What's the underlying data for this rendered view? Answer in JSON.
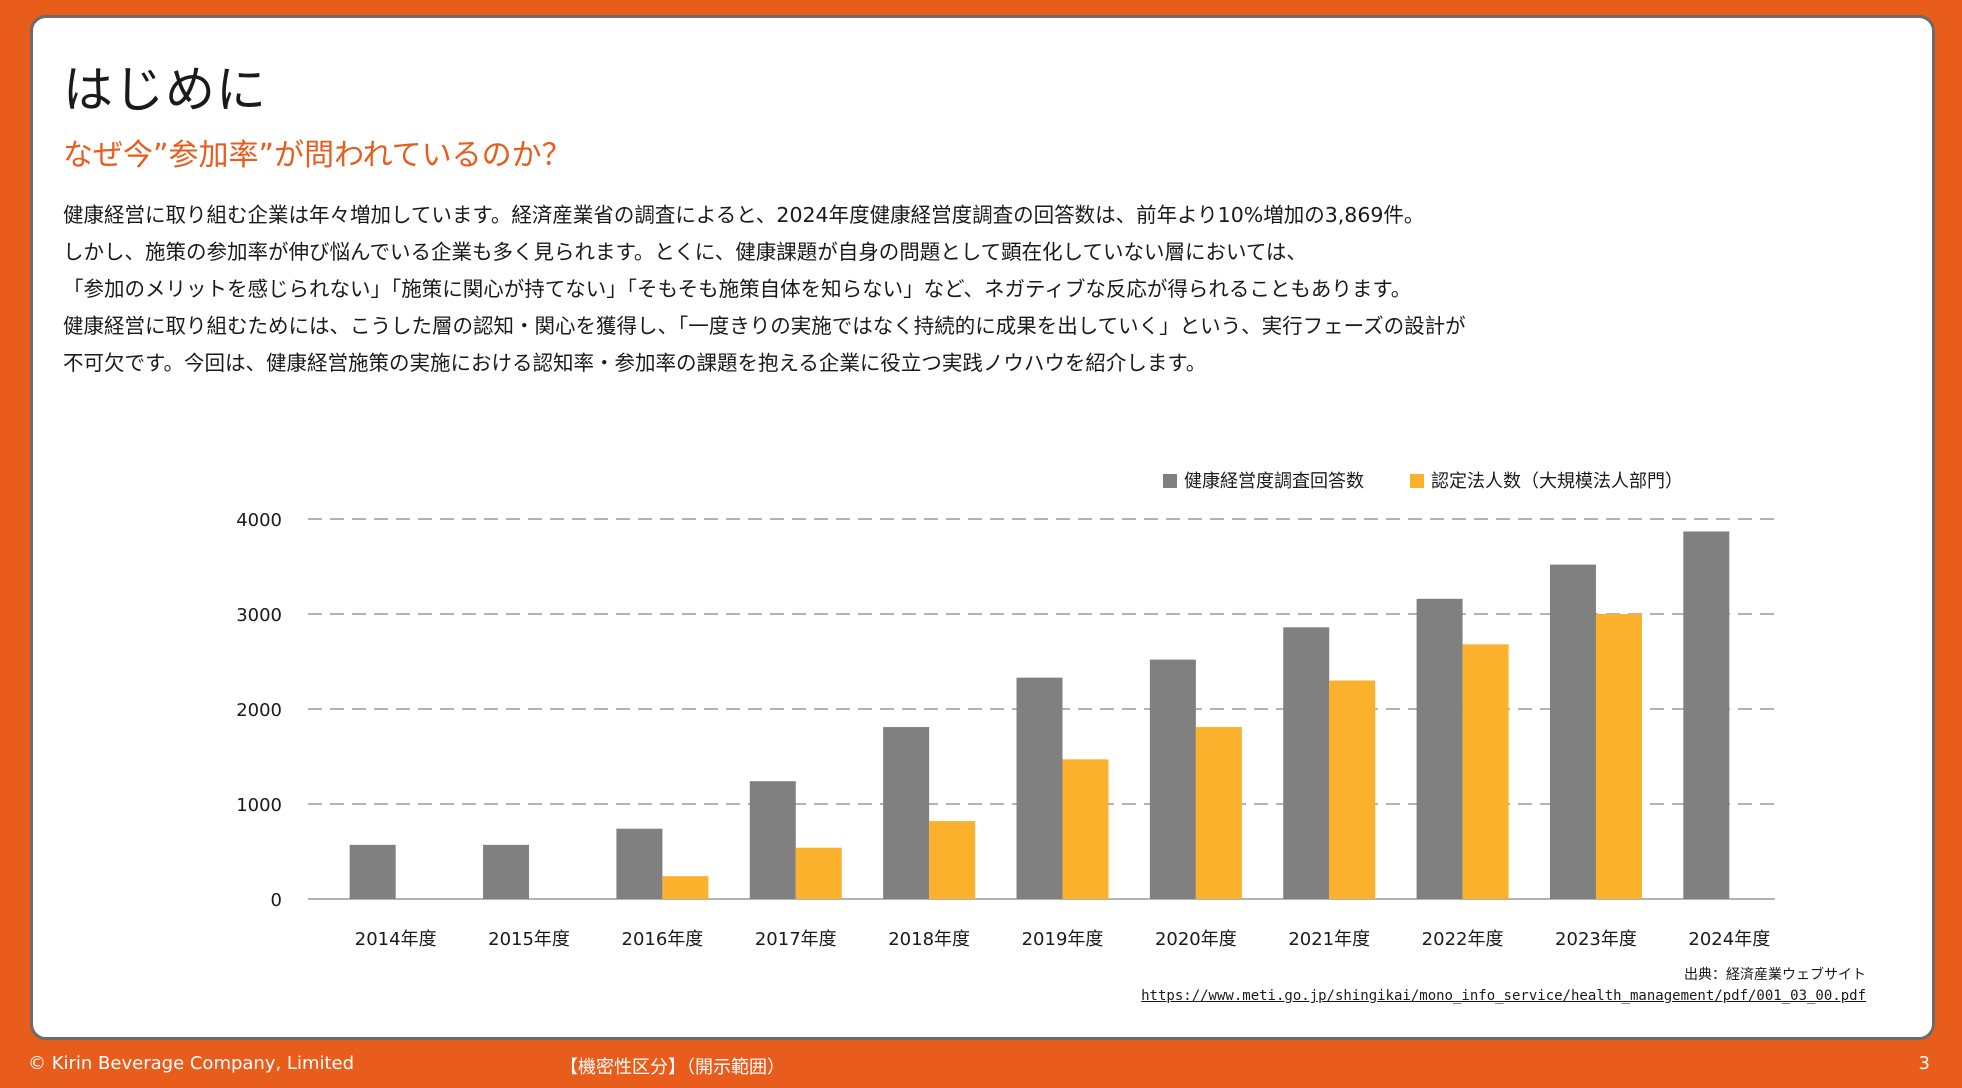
{
  "slide": {
    "title": "はじめに",
    "subtitle": "なぜ今”参加率”が問われているのか？",
    "paragraph_lines": [
      "健康経営に取り組む企業は年々増加しています。経済産業省の調査によると、2024年度健康経営度調査の回答数は、前年より10%増加の3,869件。",
      "しかし、施策の参加率が伸び悩んでいる企業も多く見られます。とくに、健康課題が自身の問題として顕在化していない層においては、",
      "「参加のメリットを感じられない」「施策に関心が持てない」「そもそも施策自体を知らない」など、ネガティブな反応が得られることもあります。",
      "健康経営に取り組むためには、こうした層の認知・関心を獲得し、「一度きりの実施ではなく持続的に成果を出していく」という、実行フェーズの設計が",
      "不可欠です。今回は、健康経営施策の実施における認知率・参加率の課題を抱える企業に役立つ実践ノウハウを紹介します。"
    ],
    "source_label": "出典：経済産業ウェブサイト",
    "source_url": "https://www.meti.go.jp/shingikai/mono_info_service/health_management/pdf/001_03_00.pdf"
  },
  "footer": {
    "copyright": "© Kirin Beverage Company, Limited",
    "confidentiality": "【機密性区分】（開示範囲）",
    "page_number": "3"
  },
  "colors": {
    "accent": "#e85c1c",
    "series_gray": "#808080",
    "series_yellow": "#fbb12c"
  },
  "chart_data": {
    "type": "bar",
    "categories": [
      "2014年度",
      "2015年度",
      "2016年度",
      "2017年度",
      "2018年度",
      "2019年度",
      "2020年度",
      "2021年度",
      "2022年度",
      "2023年度",
      "2024年度"
    ],
    "series": [
      {
        "name": "健康経営度調査回答数",
        "values": [
          570,
          570,
          740,
          1240,
          1810,
          2330,
          2520,
          2860,
          3160,
          3520,
          3869
        ]
      },
      {
        "name": "認定法人数（大規模法人部門）",
        "values": [
          null,
          null,
          240,
          540,
          820,
          1470,
          1810,
          2300,
          2680,
          3000,
          null
        ]
      }
    ],
    "y_ticks": [
      "0",
      "1000",
      "2000",
      "3000",
      "4000"
    ],
    "ylim": [
      0,
      4000
    ],
    "grid": true,
    "legend_position": "top-right"
  }
}
